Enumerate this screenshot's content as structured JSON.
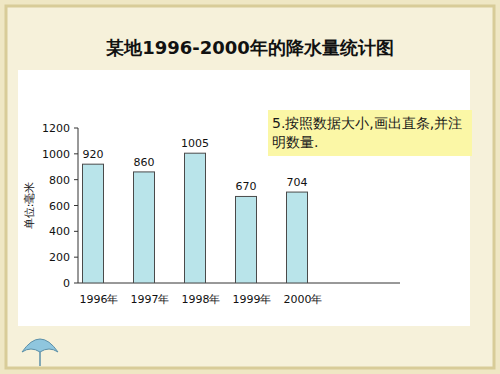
{
  "chart_data": {
    "type": "bar",
    "title": "某地1996-2000年的降水量统计图",
    "y_label": "单位:毫米",
    "annotation": "5.按照数据大小,画出直条,并注明数量.",
    "categories": [
      "1996年",
      "1997年",
      "1998年",
      "1999年",
      "2000年"
    ],
    "values": [
      920,
      860,
      1005,
      670,
      704
    ],
    "color": "#b9e4ea",
    "ylim": [
      0,
      1200
    ],
    "yticks": [
      0,
      200,
      400,
      600,
      800,
      1000,
      1200
    ],
    "grid": false,
    "data_labels": true
  }
}
